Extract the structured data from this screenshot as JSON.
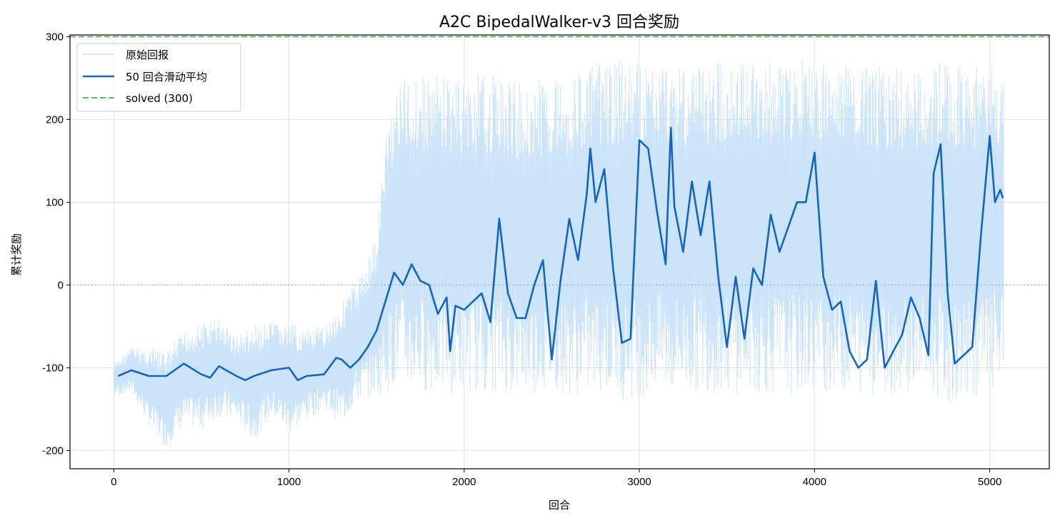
{
  "chart_data": {
    "type": "line",
    "title": "A2C BipedalWalker-v3 回合奖励",
    "xlabel": "回合",
    "ylabel": "累计奖励",
    "xlim": [
      -250,
      5340
    ],
    "ylim": [
      -222,
      302
    ],
    "x_ticks": [
      0,
      1000,
      2000,
      3000,
      4000,
      5000
    ],
    "y_ticks": [
      -200,
      -100,
      0,
      100,
      200,
      300
    ],
    "grid": true,
    "legend_position": "top-left",
    "colors": {
      "raw": "#c6e1f8",
      "moving_average": "#1565c0",
      "solved": "#66bb6a",
      "zero_line": "#b0b0b0",
      "grid": "#e3e3e3"
    },
    "hlines": [
      {
        "name": "solved (300)",
        "y": 300,
        "style": "dashed"
      },
      {
        "y": 0,
        "style": "dotted"
      }
    ],
    "series": [
      {
        "name": "原始回报",
        "kind": "band",
        "x": [
          0,
          100,
          200,
          300,
          400,
          500,
          600,
          700,
          800,
          900,
          1000,
          1100,
          1200,
          1300,
          1400,
          1500,
          1550,
          1600,
          1650,
          1700,
          1800,
          1900,
          2000,
          2100,
          2200,
          2300,
          2400,
          2500,
          2600,
          2700,
          2800,
          2900,
          3000,
          3100,
          3200,
          3300,
          3400,
          3500,
          3600,
          3700,
          3800,
          3900,
          4000,
          4100,
          4200,
          4300,
          4400,
          4500,
          4600,
          4700,
          4800,
          4900,
          5000,
          5080
        ],
        "low": [
          -135,
          -130,
          -170,
          -198,
          -170,
          -175,
          -160,
          -165,
          -190,
          -160,
          -180,
          -165,
          -150,
          -170,
          -140,
          -135,
          -130,
          -125,
          -125,
          -128,
          -130,
          -132,
          -130,
          -130,
          -130,
          -135,
          -130,
          -130,
          -132,
          -135,
          -130,
          -140,
          -135,
          -130,
          -135,
          -130,
          -130,
          -135,
          -130,
          -133,
          -130,
          -133,
          -128,
          -130,
          -130,
          -132,
          -135,
          -130,
          -130,
          -140,
          -145,
          -135,
          -130,
          -125
        ],
        "high": [
          -95,
          -75,
          -75,
          -80,
          -55,
          -45,
          -40,
          -60,
          -50,
          -45,
          -45,
          -55,
          -50,
          -20,
          10,
          60,
          180,
          240,
          250,
          255,
          255,
          255,
          250,
          255,
          255,
          245,
          245,
          255,
          250,
          265,
          270,
          270,
          270,
          268,
          275,
          265,
          272,
          272,
          270,
          270,
          272,
          270,
          275,
          265,
          265,
          262,
          265,
          260,
          262,
          272,
          265,
          265,
          265,
          270
        ]
      },
      {
        "name": "50 回合滑动平均",
        "x": [
          25,
          100,
          200,
          300,
          400,
          500,
          550,
          600,
          700,
          750,
          800,
          900,
          1000,
          1050,
          1100,
          1200,
          1270,
          1300,
          1350,
          1400,
          1450,
          1500,
          1550,
          1600,
          1650,
          1700,
          1750,
          1800,
          1850,
          1900,
          1920,
          1950,
          2000,
          2050,
          2100,
          2150,
          2180,
          2200,
          2250,
          2300,
          2350,
          2400,
          2450,
          2500,
          2550,
          2600,
          2650,
          2700,
          2720,
          2750,
          2800,
          2850,
          2900,
          2950,
          3000,
          3050,
          3100,
          3150,
          3180,
          3200,
          3250,
          3300,
          3350,
          3400,
          3450,
          3500,
          3550,
          3600,
          3650,
          3700,
          3750,
          3800,
          3850,
          3900,
          3950,
          4000,
          4050,
          4100,
          4150,
          4200,
          4250,
          4300,
          4350,
          4400,
          4450,
          4500,
          4550,
          4600,
          4650,
          4680,
          4720,
          4760,
          4800,
          4850,
          4900,
          4950,
          5000,
          5030,
          5060,
          5075
        ],
        "values": [
          -110,
          -103,
          -110,
          -110,
          -95,
          -108,
          -112,
          -98,
          -110,
          -115,
          -110,
          -103,
          -100,
          -115,
          -110,
          -108,
          -88,
          -90,
          -100,
          -90,
          -75,
          -55,
          -20,
          15,
          0,
          25,
          5,
          0,
          -35,
          -15,
          -80,
          -25,
          -30,
          -20,
          -10,
          -45,
          30,
          80,
          -10,
          -40,
          -40,
          0,
          30,
          -90,
          5,
          80,
          30,
          110,
          165,
          100,
          140,
          20,
          -70,
          -65,
          175,
          165,
          90,
          25,
          190,
          95,
          40,
          125,
          60,
          125,
          10,
          -75,
          10,
          -65,
          20,
          0,
          85,
          40,
          70,
          100,
          100,
          160,
          10,
          -30,
          -20,
          -80,
          -100,
          -90,
          5,
          -100,
          -80,
          -60,
          -15,
          -40,
          -85,
          135,
          170,
          -10,
          -95,
          -85,
          -75,
          60,
          180,
          100,
          115,
          105
        ]
      }
    ]
  }
}
